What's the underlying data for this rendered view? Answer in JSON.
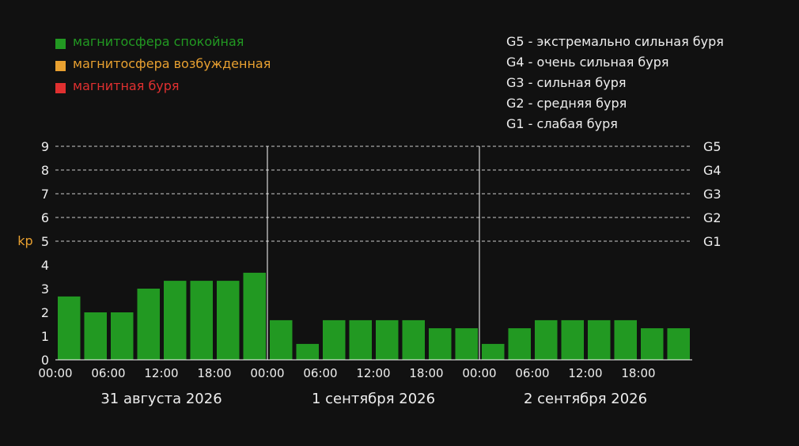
{
  "colors": {
    "background": "#111111",
    "calm": "#229922",
    "excited": "#e8a030",
    "storm": "#e03030",
    "text": "#eeeeee",
    "axis_label": "#e8a030"
  },
  "legend": {
    "status": [
      {
        "label": "магнитосфера спокойная",
        "color": "#229922"
      },
      {
        "label": "магнитосфера возбужденная",
        "color": "#e8a030"
      },
      {
        "label": "магнитная буря",
        "color": "#e03030"
      }
    ],
    "storm_levels": [
      {
        "code": "G5",
        "text": " - экстремально сильная буря"
      },
      {
        "code": "G4",
        "text": " - очень сильная буря"
      },
      {
        "code": "G3",
        "text": " - сильная буря"
      },
      {
        "code": "G2",
        "text": " - средняя буря"
      },
      {
        "code": "G1",
        "text": " - слабая буря"
      }
    ]
  },
  "chart_data": {
    "type": "bar",
    "ylabel": "kp",
    "ylim": [
      0,
      9
    ],
    "yticks": [
      "0",
      "1",
      "2",
      "3",
      "4",
      "5",
      "6",
      "7",
      "8",
      "9"
    ],
    "grid": "dashed horizontal lines at 5–9",
    "right_labels": [
      {
        "value": 5,
        "label": "G1"
      },
      {
        "value": 6,
        "label": "G2"
      },
      {
        "value": 7,
        "label": "G3"
      },
      {
        "value": 8,
        "label": "G4"
      },
      {
        "value": 9,
        "label": "G5"
      }
    ],
    "days": [
      {
        "date": "31 августа 2026",
        "xticks": [
          "00:00",
          "06:00",
          "12:00",
          "18:00"
        ],
        "values": [
          2.67,
          2.0,
          2.0,
          3.0,
          3.33,
          3.33,
          3.33,
          3.67
        ]
      },
      {
        "date": "1 сентября 2026",
        "xticks": [
          "00:00",
          "06:00",
          "12:00",
          "18:00"
        ],
        "values": [
          1.67,
          0.67,
          1.67,
          1.67,
          1.67,
          1.67,
          1.33,
          1.33
        ]
      },
      {
        "date": "2 сентября 2026",
        "xticks": [
          "00:00",
          "06:00",
          "12:00",
          "18:00"
        ],
        "values": [
          0.67,
          1.33,
          1.67,
          1.67,
          1.67,
          1.67,
          1.33,
          1.33
        ]
      }
    ]
  }
}
